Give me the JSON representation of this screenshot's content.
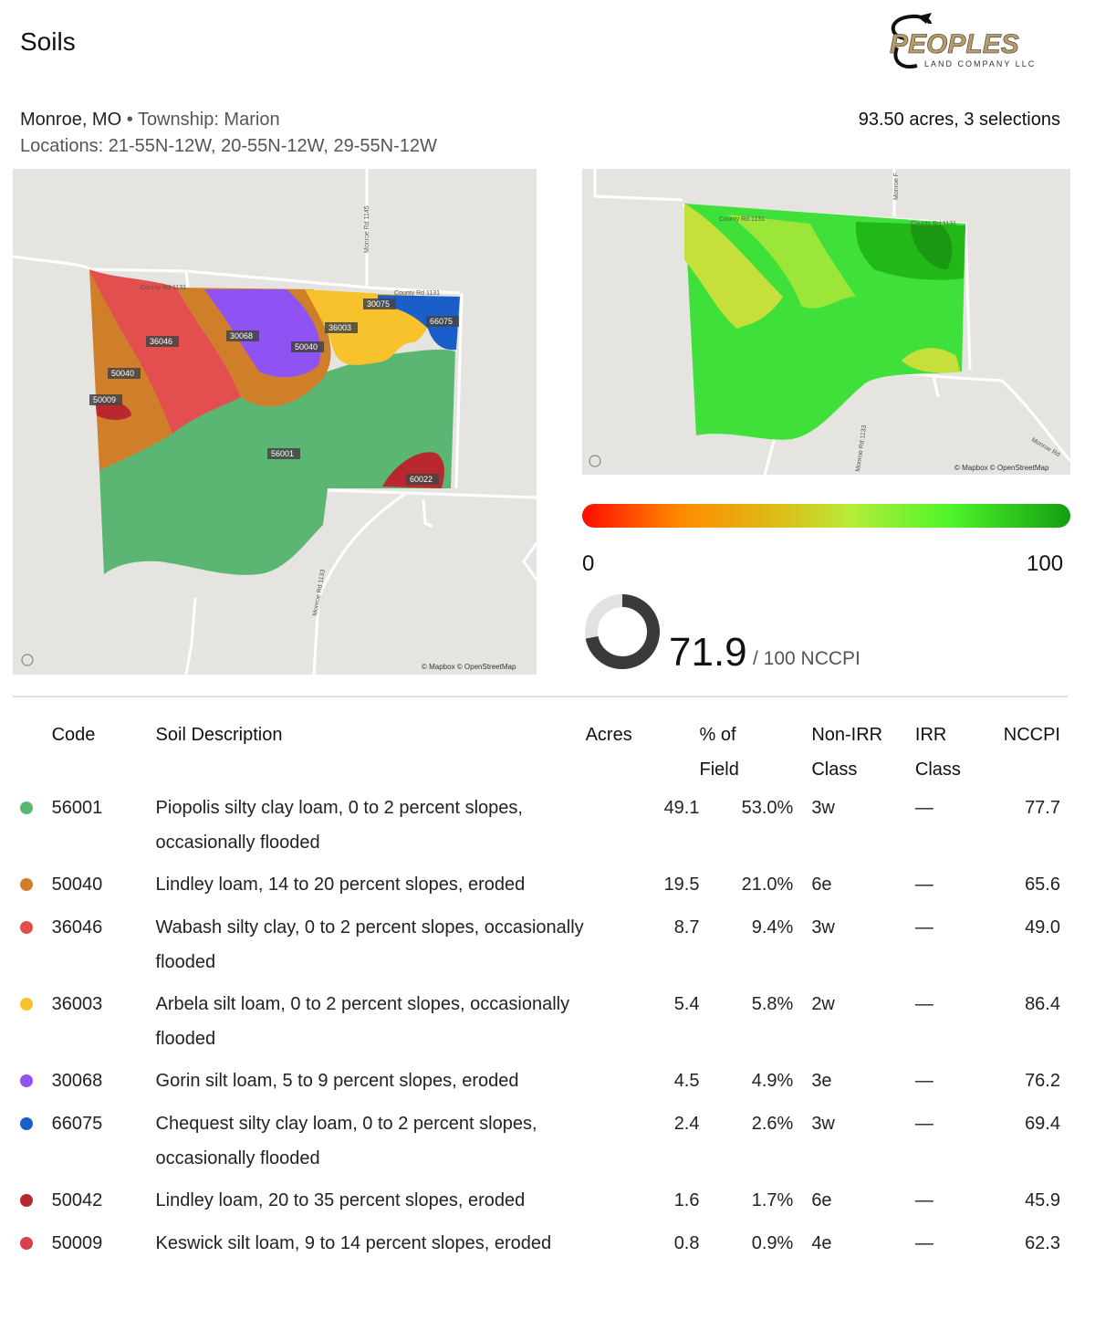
{
  "header": {
    "title": "Soils",
    "logo_text": "PEOPLES",
    "logo_subtext": "LAND COMPANY LLC"
  },
  "location": {
    "county": "Monroe, MO",
    "separator": "•",
    "township": "Township: Marion",
    "locations": "Locations: 21-55N-12W, 20-55N-12W, 29-55N-12W",
    "acres_summary": "93.50 acres, 3 selections"
  },
  "soil_map": {
    "labels": [
      "36046",
      "30068",
      "50040",
      "36003",
      "30075",
      "66075",
      "50040",
      "50009",
      "56001",
      "60022"
    ],
    "roads": [
      "County Rd 1131",
      "County Rd 1131",
      "Monroe Rd 1145",
      "Monroe Rd 1133"
    ],
    "attribution": "© Mapbox © OpenStreetMap"
  },
  "nccpi_map": {
    "roads": [
      "County Rd 1131",
      "County Rd 1131",
      "Monroe F",
      "Monroe Rd 1133",
      "Monroe Rd"
    ],
    "attribution": "© Mapbox © OpenStreetMap"
  },
  "scale": {
    "min": "0",
    "max": "100"
  },
  "score": {
    "value": "71.9",
    "suffix": "/ 100 NCCPI",
    "fraction": 0.719
  },
  "table": {
    "headers": {
      "code": "Code",
      "description": "Soil Description",
      "acres": "Acres",
      "pct_line1": "% of",
      "pct_line2": "Field",
      "nonirr_line1": "Non-IRR",
      "nonirr_line2": "Class",
      "irr_line1": "IRR",
      "irr_line2": "Class",
      "nccpi": "NCCPI"
    },
    "rows": [
      {
        "color": "#5cb673",
        "code": "56001",
        "description": "Piopolis silty clay loam, 0 to 2 percent slopes, occasionally flooded",
        "acres": "49.1",
        "pct": "53.0%",
        "nonirr": "3w",
        "irr": "—",
        "nccpi": "77.7"
      },
      {
        "color": "#cf7f2a",
        "code": "50040",
        "description": "Lindley loam, 14 to 20 percent slopes, eroded",
        "acres": "19.5",
        "pct": "21.0%",
        "nonirr": "6e",
        "irr": "—",
        "nccpi": "65.6"
      },
      {
        "color": "#e34f4f",
        "code": "36046",
        "description": "Wabash silty clay, 0 to 2 percent slopes, occasionally flooded",
        "acres": "8.7",
        "pct": "9.4%",
        "nonirr": "3w",
        "irr": "—",
        "nccpi": "49.0"
      },
      {
        "color": "#f8c22d",
        "code": "36003",
        "description": "Arbela silt loam, 0 to 2 percent slopes, occasionally flooded",
        "acres": "5.4",
        "pct": "5.8%",
        "nonirr": "2w",
        "irr": "—",
        "nccpi": "86.4"
      },
      {
        "color": "#8e53f2",
        "code": "30068",
        "description": "Gorin silt loam, 5 to 9 percent slopes, eroded",
        "acres": "4.5",
        "pct": "4.9%",
        "nonirr": "3e",
        "irr": "—",
        "nccpi": "76.2"
      },
      {
        "color": "#1a5fc9",
        "code": "66075",
        "description": "Chequest silty clay loam, 0 to 2 percent slopes, occasionally flooded",
        "acres": "2.4",
        "pct": "2.6%",
        "nonirr": "3w",
        "irr": "—",
        "nccpi": "69.4"
      },
      {
        "color": "#b8282e",
        "code": "50042",
        "description": "Lindley loam, 20 to 35 percent slopes, eroded",
        "acres": "1.6",
        "pct": "1.7%",
        "nonirr": "6e",
        "irr": "—",
        "nccpi": "45.9"
      },
      {
        "color": "#d9414a",
        "code": "50009",
        "description": "Keswick silt loam, 9 to 14 percent slopes, eroded",
        "acres": "0.8",
        "pct": "0.9%",
        "nonirr": "4e",
        "irr": "—",
        "nccpi": "62.3"
      }
    ]
  }
}
